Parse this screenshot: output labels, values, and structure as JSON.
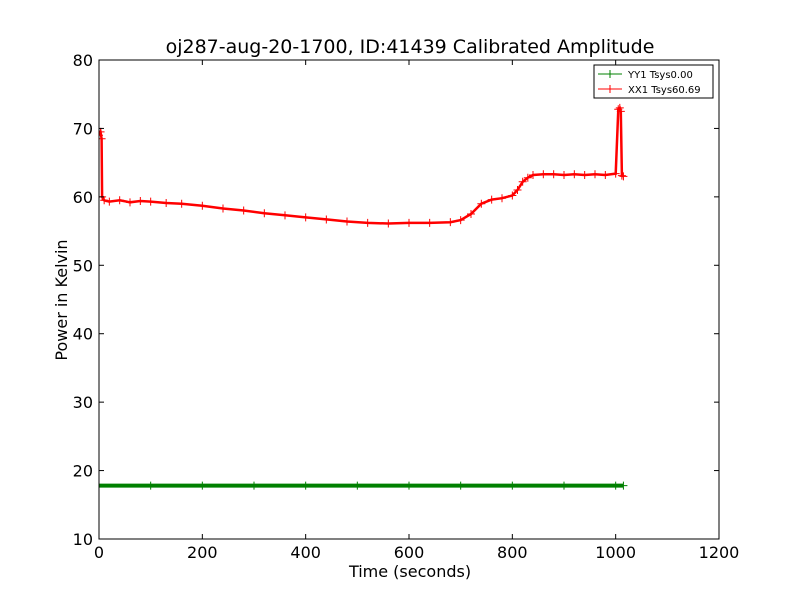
{
  "chart_data": {
    "type": "line",
    "title": "oj287-aug-20-1700, ID:41439 Calibrated Amplitude",
    "xlabel": "Time (seconds)",
    "ylabel": "Power in Kelvin",
    "xlim": [
      0,
      1200
    ],
    "ylim": [
      10,
      80
    ],
    "x_ticks": [
      "0",
      "200",
      "400",
      "600",
      "800",
      "1000",
      "1200"
    ],
    "y_ticks": [
      "10",
      "20",
      "30",
      "40",
      "50",
      "60",
      "70",
      "80"
    ],
    "grid": false,
    "legend_position": "top-right",
    "series": [
      {
        "name": "YY1 Tsys0.00",
        "color": "#008000",
        "marker": "plus",
        "x": [
          0,
          100,
          200,
          300,
          400,
          500,
          600,
          700,
          800,
          900,
          1000,
          1015
        ],
        "y": [
          17.8,
          17.8,
          17.8,
          17.8,
          17.8,
          17.8,
          17.8,
          17.8,
          17.8,
          17.8,
          17.8,
          17.8
        ]
      },
      {
        "name": "XX1 Tsys60.69",
        "color": "#ff0000",
        "marker": "plus",
        "x": [
          0,
          3,
          5,
          6,
          10,
          20,
          40,
          60,
          80,
          100,
          130,
          160,
          200,
          240,
          280,
          320,
          360,
          400,
          440,
          480,
          520,
          560,
          600,
          640,
          680,
          700,
          720,
          740,
          760,
          780,
          800,
          810,
          820,
          830,
          840,
          860,
          880,
          900,
          920,
          940,
          960,
          980,
          1000,
          1005,
          1008,
          1010,
          1012,
          1015
        ],
        "y": [
          69,
          69.5,
          68.5,
          60,
          59.5,
          59.3,
          59.5,
          59.2,
          59.4,
          59.3,
          59.1,
          59.0,
          58.7,
          58.3,
          58.0,
          57.6,
          57.3,
          57.0,
          56.7,
          56.4,
          56.2,
          56.1,
          56.2,
          56.2,
          56.3,
          56.6,
          57.5,
          59.0,
          59.6,
          59.8,
          60.2,
          61.0,
          62.2,
          62.8,
          63.2,
          63.3,
          63.3,
          63.2,
          63.3,
          63.2,
          63.3,
          63.2,
          63.4,
          72.8,
          73.0,
          72.5,
          63.1,
          63.0
        ]
      }
    ]
  }
}
